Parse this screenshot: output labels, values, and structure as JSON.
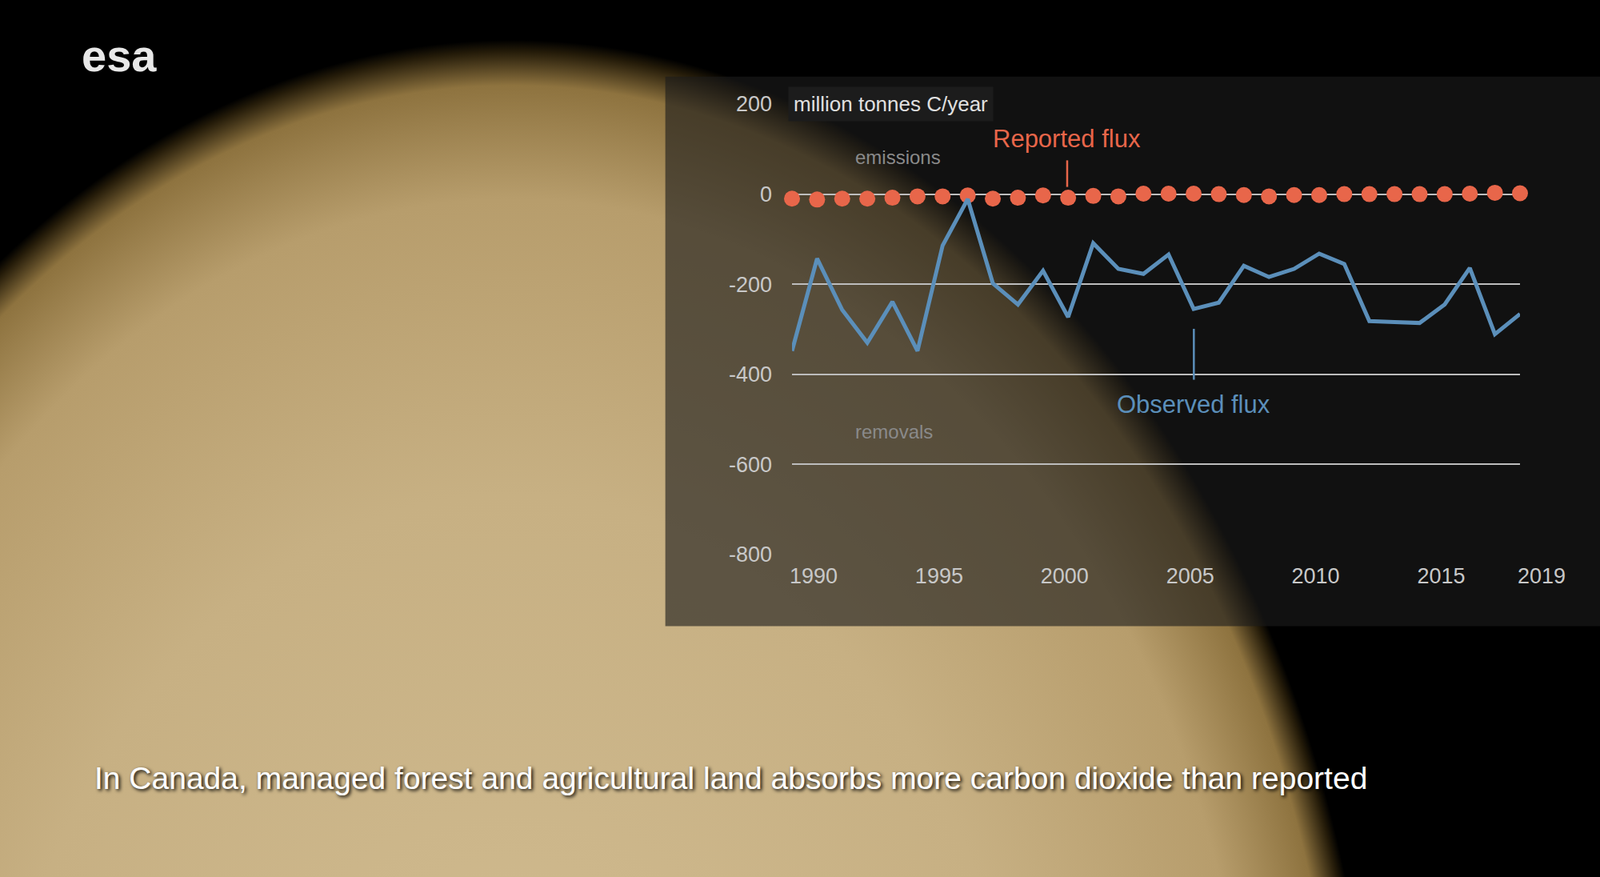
{
  "chart_data": {
    "type": "line",
    "logo": "esa",
    "caption": "In Canada, managed forest and agricultural land absorbs more carbon dioxide than reported",
    "ylabel": "million tonnes C/year",
    "annotations": [
      "emissions",
      "removals"
    ],
    "x": [
      1990,
      1991,
      1992,
      1993,
      1994,
      1995,
      1996,
      1997,
      1998,
      1999,
      2000,
      2001,
      2002,
      2003,
      2004,
      2005,
      2006,
      2007,
      2008,
      2009,
      2010,
      2011,
      2012,
      2013,
      2014,
      2015,
      2016,
      2017,
      2018,
      2019
    ],
    "series": [
      {
        "name": "Reported flux",
        "color": "#e8664a",
        "marker": "circle",
        "line_style": "none",
        "values": [
          -10,
          -12,
          -10,
          -10,
          -8,
          -5,
          -5,
          -3,
          -10,
          -8,
          -3,
          -8,
          -4,
          -5,
          1,
          1,
          1,
          0,
          -2,
          -5,
          -2,
          -2,
          0,
          0,
          0,
          0,
          0,
          1,
          3,
          2
        ]
      },
      {
        "name": "Observed flux",
        "color": "#5b8fba",
        "marker": "none",
        "line_style": "solid",
        "values": [
          -348,
          -143,
          -257,
          -330,
          -239,
          -348,
          -114,
          -11,
          -198,
          -245,
          -170,
          -273,
          -109,
          -166,
          -177,
          -134,
          -255,
          -241,
          -159,
          -184,
          -166,
          -132,
          -155,
          -282,
          -284,
          -286,
          -245,
          -164,
          -311,
          -266
        ]
      }
    ],
    "xlim": [
      1990,
      2019
    ],
    "xticks": [
      1990,
      1995,
      2000,
      2005,
      2010,
      2015,
      2019
    ],
    "ylim": [
      -800,
      200
    ],
    "yticks": [
      -800,
      -600,
      -400,
      -200,
      0,
      200
    ],
    "grid": true
  }
}
